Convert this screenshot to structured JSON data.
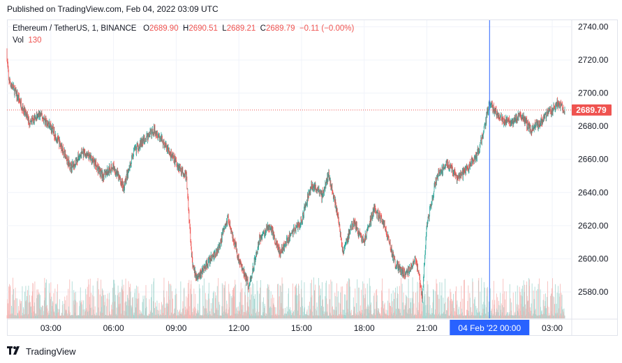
{
  "header": {
    "published": "Published on TradingView.com, Feb 04, 2022 03:09 UTC"
  },
  "legend": {
    "symbol": "Ethereum / TetherUS, 1, BINANCE",
    "o_label": "O",
    "o_value": "2689.90",
    "h_label": "H",
    "h_value": "2690.51",
    "l_label": "L",
    "l_value": "2689.21",
    "c_label": "C",
    "c_value": "2689.79",
    "change": "−0.11 (−0.00%)",
    "vol_label": "Vol",
    "vol_value": "130"
  },
  "footer": {
    "brand": "TradingView",
    "logo_icon": "tradingview-logo-icon"
  },
  "colors": {
    "up": "#26a69a",
    "down": "#ef5350",
    "crosshair": "#2962ff",
    "price_tag": "#ef5350"
  },
  "chart_data": {
    "type": "candlestick",
    "title": "Ethereum / TetherUS, 1, BINANCE",
    "y_ticks": [
      2740,
      2720,
      2700,
      2680,
      2660,
      2640,
      2620,
      2600,
      2580
    ],
    "y_tick_labels": [
      "2740.00",
      "2720.00",
      "2700.00",
      "2680.00",
      "2660.00",
      "2640.00",
      "2620.00",
      "2600.00",
      "2580.00"
    ],
    "ylim": [
      2564,
      2744
    ],
    "x_tick_labels": [
      "03:00",
      "06:00",
      "09:00",
      "12:00",
      "15:00",
      "18:00",
      "21:00",
      "03:00"
    ],
    "x_tick_hours": [
      3,
      6,
      9,
      12,
      15,
      18,
      21,
      27
    ],
    "xlim_hours": [
      0.9,
      27.9
    ],
    "last_price": 2689.79,
    "last_price_label": "2689.79",
    "crosshair": {
      "hour": 24.0,
      "label": "04 Feb '22   00:00"
    },
    "price_path": [
      [
        0.9,
        2725
      ],
      [
        1.0,
        2708
      ],
      [
        1.5,
        2696
      ],
      [
        2.0,
        2682
      ],
      [
        2.5,
        2687
      ],
      [
        3.0,
        2680
      ],
      [
        3.5,
        2668
      ],
      [
        4.0,
        2655
      ],
      [
        4.5,
        2664
      ],
      [
        5.0,
        2660
      ],
      [
        5.5,
        2650
      ],
      [
        6.0,
        2656
      ],
      [
        6.5,
        2643
      ],
      [
        7.0,
        2665
      ],
      [
        7.5,
        2672
      ],
      [
        8.0,
        2678
      ],
      [
        8.5,
        2668
      ],
      [
        9.0,
        2658
      ],
      [
        9.5,
        2650
      ],
      [
        9.8,
        2595
      ],
      [
        10.0,
        2588
      ],
      [
        10.5,
        2597
      ],
      [
        11.0,
        2605
      ],
      [
        11.5,
        2625
      ],
      [
        12.0,
        2600
      ],
      [
        12.5,
        2583
      ],
      [
        13.0,
        2612
      ],
      [
        13.5,
        2620
      ],
      [
        14.0,
        2603
      ],
      [
        14.5,
        2615
      ],
      [
        15.0,
        2622
      ],
      [
        15.5,
        2645
      ],
      [
        16.0,
        2638
      ],
      [
        16.3,
        2651
      ],
      [
        16.7,
        2630
      ],
      [
        17.0,
        2605
      ],
      [
        17.5,
        2622
      ],
      [
        18.0,
        2610
      ],
      [
        18.5,
        2630
      ],
      [
        19.0,
        2620
      ],
      [
        19.5,
        2597
      ],
      [
        20.0,
        2590
      ],
      [
        20.5,
        2600
      ],
      [
        20.8,
        2577
      ],
      [
        21.0,
        2620
      ],
      [
        21.5,
        2650
      ],
      [
        22.0,
        2658
      ],
      [
        22.5,
        2648
      ],
      [
        23.0,
        2655
      ],
      [
        23.5,
        2665
      ],
      [
        23.8,
        2680
      ],
      [
        24.0,
        2695
      ],
      [
        24.5,
        2685
      ],
      [
        25.0,
        2682
      ],
      [
        25.5,
        2687
      ],
      [
        26.0,
        2678
      ],
      [
        26.5,
        2683
      ],
      [
        27.0,
        2690
      ],
      [
        27.3,
        2695
      ],
      [
        27.6,
        2689.79
      ]
    ]
  }
}
